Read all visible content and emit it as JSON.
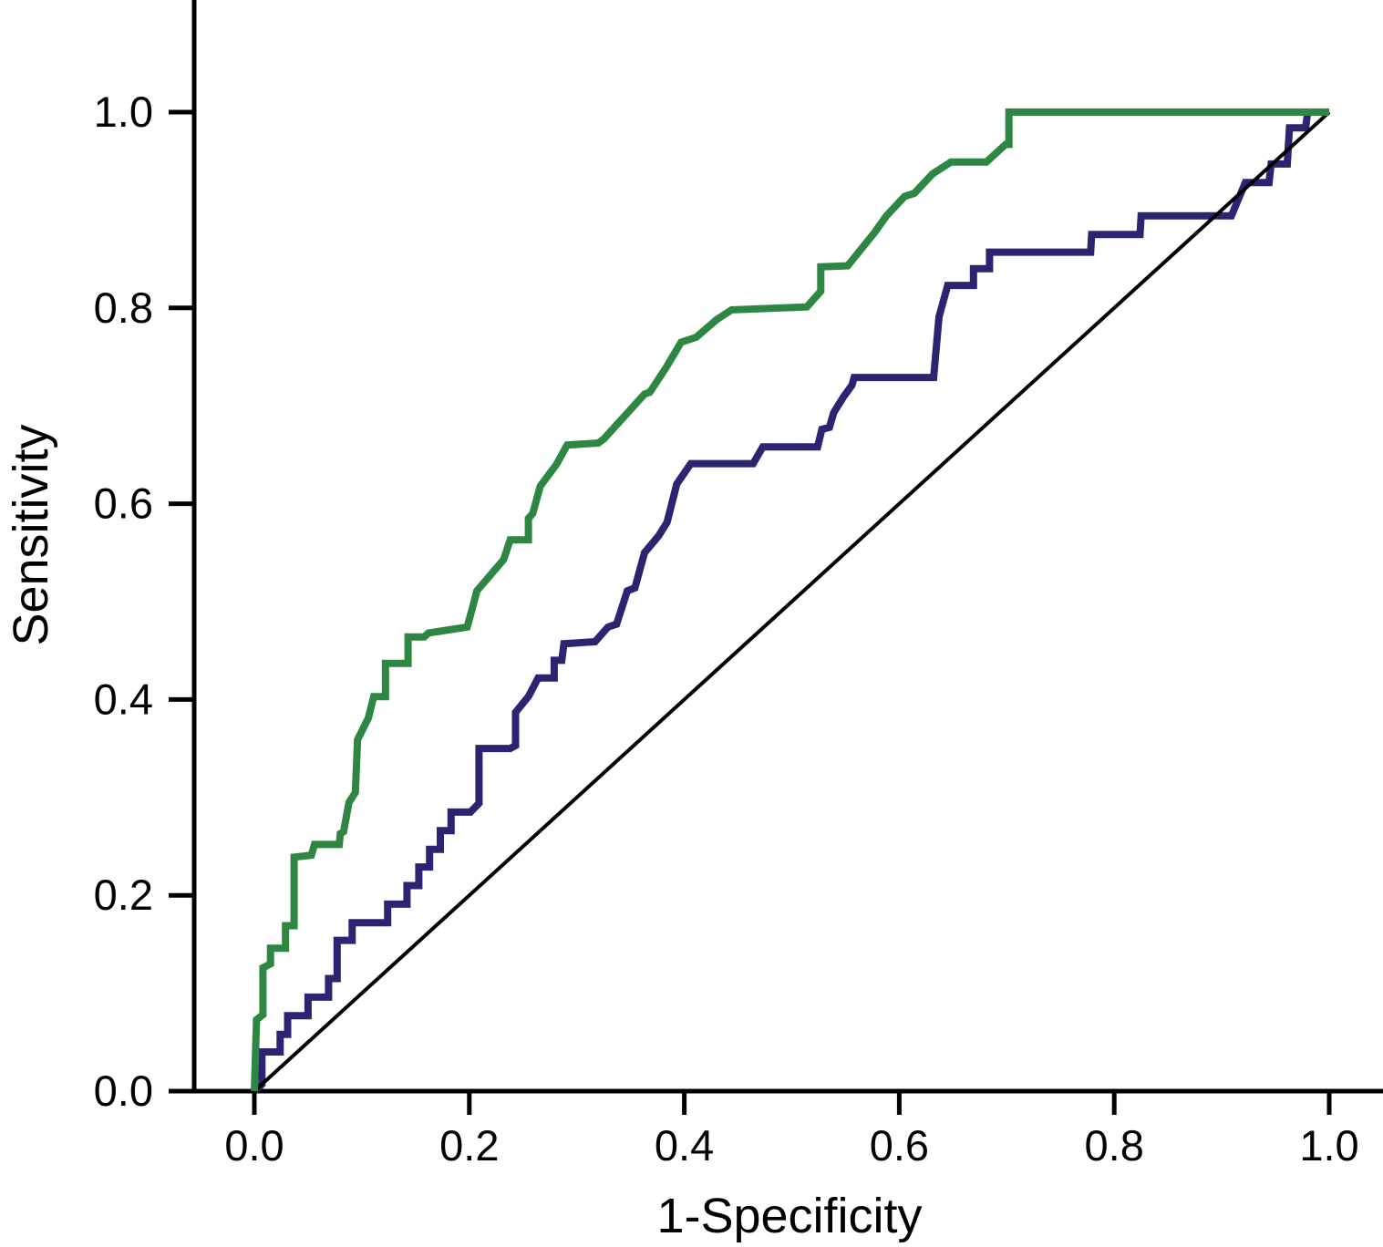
{
  "chart_data": {
    "type": "line",
    "subtype": "roc-curve",
    "title": "",
    "xlabel": "1-Specificity",
    "ylabel": "Sensitivity",
    "xlim": [
      0,
      1
    ],
    "ylim": [
      0,
      1
    ],
    "grid": false,
    "legend_position": "none",
    "x_tick_values": [
      0,
      0.2,
      0.4,
      0.6,
      0.8,
      1.0
    ],
    "x_tick_labels": [
      "0.0",
      "0.2",
      "0.4",
      "0.6",
      "0.8",
      "1.0"
    ],
    "y_tick_values": [
      0,
      0.2,
      0.4,
      0.6,
      0.8,
      1.0
    ],
    "y_tick_labels": [
      "0.0",
      "0.2",
      "0.4",
      "0.6",
      "0.8",
      "1.0"
    ],
    "series": [
      {
        "name": "navy-roc-curve",
        "color": "#2b2471",
        "stroke_width": 8,
        "points": [
          [
            0.0,
            0.0
          ],
          [
            0.007,
            0.007
          ],
          [
            0.007,
            0.04
          ],
          [
            0.024,
            0.04
          ],
          [
            0.024,
            0.058
          ],
          [
            0.031,
            0.058
          ],
          [
            0.031,
            0.077
          ],
          [
            0.05,
            0.077
          ],
          [
            0.05,
            0.096
          ],
          [
            0.069,
            0.096
          ],
          [
            0.069,
            0.115
          ],
          [
            0.077,
            0.115
          ],
          [
            0.077,
            0.154
          ],
          [
            0.091,
            0.154
          ],
          [
            0.091,
            0.172
          ],
          [
            0.124,
            0.172
          ],
          [
            0.124,
            0.191
          ],
          [
            0.142,
            0.191
          ],
          [
            0.142,
            0.21
          ],
          [
            0.153,
            0.21
          ],
          [
            0.153,
            0.229
          ],
          [
            0.163,
            0.229
          ],
          [
            0.163,
            0.247
          ],
          [
            0.173,
            0.247
          ],
          [
            0.173,
            0.266
          ],
          [
            0.183,
            0.266
          ],
          [
            0.183,
            0.285
          ],
          [
            0.201,
            0.285
          ],
          [
            0.209,
            0.294
          ],
          [
            0.209,
            0.35
          ],
          [
            0.238,
            0.35
          ],
          [
            0.243,
            0.353
          ],
          [
            0.243,
            0.387
          ],
          [
            0.255,
            0.403
          ],
          [
            0.264,
            0.422
          ],
          [
            0.279,
            0.422
          ],
          [
            0.279,
            0.44
          ],
          [
            0.286,
            0.44
          ],
          [
            0.288,
            0.457
          ],
          [
            0.317,
            0.459
          ],
          [
            0.329,
            0.474
          ],
          [
            0.337,
            0.477
          ],
          [
            0.347,
            0.511
          ],
          [
            0.354,
            0.514
          ],
          [
            0.363,
            0.55
          ],
          [
            0.376,
            0.567
          ],
          [
            0.384,
            0.581
          ],
          [
            0.393,
            0.62
          ],
          [
            0.406,
            0.641
          ],
          [
            0.464,
            0.641
          ],
          [
            0.473,
            0.658
          ],
          [
            0.524,
            0.658
          ],
          [
            0.528,
            0.676
          ],
          [
            0.535,
            0.678
          ],
          [
            0.539,
            0.693
          ],
          [
            0.548,
            0.709
          ],
          [
            0.556,
            0.721
          ],
          [
            0.558,
            0.729
          ],
          [
            0.632,
            0.729
          ],
          [
            0.637,
            0.791
          ],
          [
            0.645,
            0.823
          ],
          [
            0.669,
            0.823
          ],
          [
            0.669,
            0.84
          ],
          [
            0.684,
            0.84
          ],
          [
            0.684,
            0.857
          ],
          [
            0.778,
            0.857
          ],
          [
            0.779,
            0.875
          ],
          [
            0.824,
            0.875
          ],
          [
            0.825,
            0.894
          ],
          [
            0.909,
            0.894
          ],
          [
            0.922,
            0.928
          ],
          [
            0.944,
            0.928
          ],
          [
            0.946,
            0.947
          ],
          [
            0.961,
            0.947
          ],
          [
            0.963,
            0.984
          ],
          [
            0.978,
            0.984
          ],
          [
            0.98,
            1.0
          ],
          [
            1.0,
            1.0
          ]
        ]
      },
      {
        "name": "reference-diagonal",
        "color": "#000000",
        "stroke_width": 4,
        "points": [
          [
            0.0,
            0.0
          ],
          [
            1.0,
            1.0
          ]
        ]
      },
      {
        "name": "green-roc-curve",
        "color": "#2e8643",
        "stroke_width": 8,
        "points": [
          [
            0.0,
            0.0
          ],
          [
            0.002,
            0.073
          ],
          [
            0.008,
            0.078
          ],
          [
            0.008,
            0.126
          ],
          [
            0.015,
            0.13
          ],
          [
            0.015,
            0.146
          ],
          [
            0.029,
            0.146
          ],
          [
            0.029,
            0.169
          ],
          [
            0.037,
            0.169
          ],
          [
            0.037,
            0.239
          ],
          [
            0.053,
            0.241
          ],
          [
            0.056,
            0.252
          ],
          [
            0.079,
            0.252
          ],
          [
            0.08,
            0.263
          ],
          [
            0.083,
            0.265
          ],
          [
            0.088,
            0.295
          ],
          [
            0.094,
            0.305
          ],
          [
            0.096,
            0.359
          ],
          [
            0.106,
            0.381
          ],
          [
            0.111,
            0.403
          ],
          [
            0.122,
            0.403
          ],
          [
            0.122,
            0.437
          ],
          [
            0.143,
            0.437
          ],
          [
            0.143,
            0.464
          ],
          [
            0.158,
            0.464
          ],
          [
            0.162,
            0.468
          ],
          [
            0.198,
            0.474
          ],
          [
            0.202,
            0.49
          ],
          [
            0.207,
            0.511
          ],
          [
            0.232,
            0.543
          ],
          [
            0.238,
            0.563
          ],
          [
            0.255,
            0.563
          ],
          [
            0.255,
            0.585
          ],
          [
            0.259,
            0.59
          ],
          [
            0.266,
            0.618
          ],
          [
            0.281,
            0.64
          ],
          [
            0.291,
            0.66
          ],
          [
            0.32,
            0.662
          ],
          [
            0.325,
            0.666
          ],
          [
            0.363,
            0.712
          ],
          [
            0.368,
            0.714
          ],
          [
            0.383,
            0.739
          ],
          [
            0.397,
            0.765
          ],
          [
            0.411,
            0.77
          ],
          [
            0.43,
            0.788
          ],
          [
            0.444,
            0.798
          ],
          [
            0.514,
            0.801
          ],
          [
            0.527,
            0.817
          ],
          [
            0.527,
            0.842
          ],
          [
            0.552,
            0.843
          ],
          [
            0.577,
            0.877
          ],
          [
            0.588,
            0.894
          ],
          [
            0.605,
            0.914
          ],
          [
            0.614,
            0.917
          ],
          [
            0.631,
            0.937
          ],
          [
            0.648,
            0.949
          ],
          [
            0.681,
            0.949
          ],
          [
            0.69,
            0.958
          ],
          [
            0.699,
            0.967
          ],
          [
            0.702,
            0.967
          ],
          [
            0.702,
            1.0
          ],
          [
            1.0,
            1.0
          ]
        ]
      }
    ]
  },
  "colors": {
    "background": "#ffffff",
    "axis": "#000000",
    "green_curve": "#2e8643",
    "navy_curve": "#2b2471"
  }
}
